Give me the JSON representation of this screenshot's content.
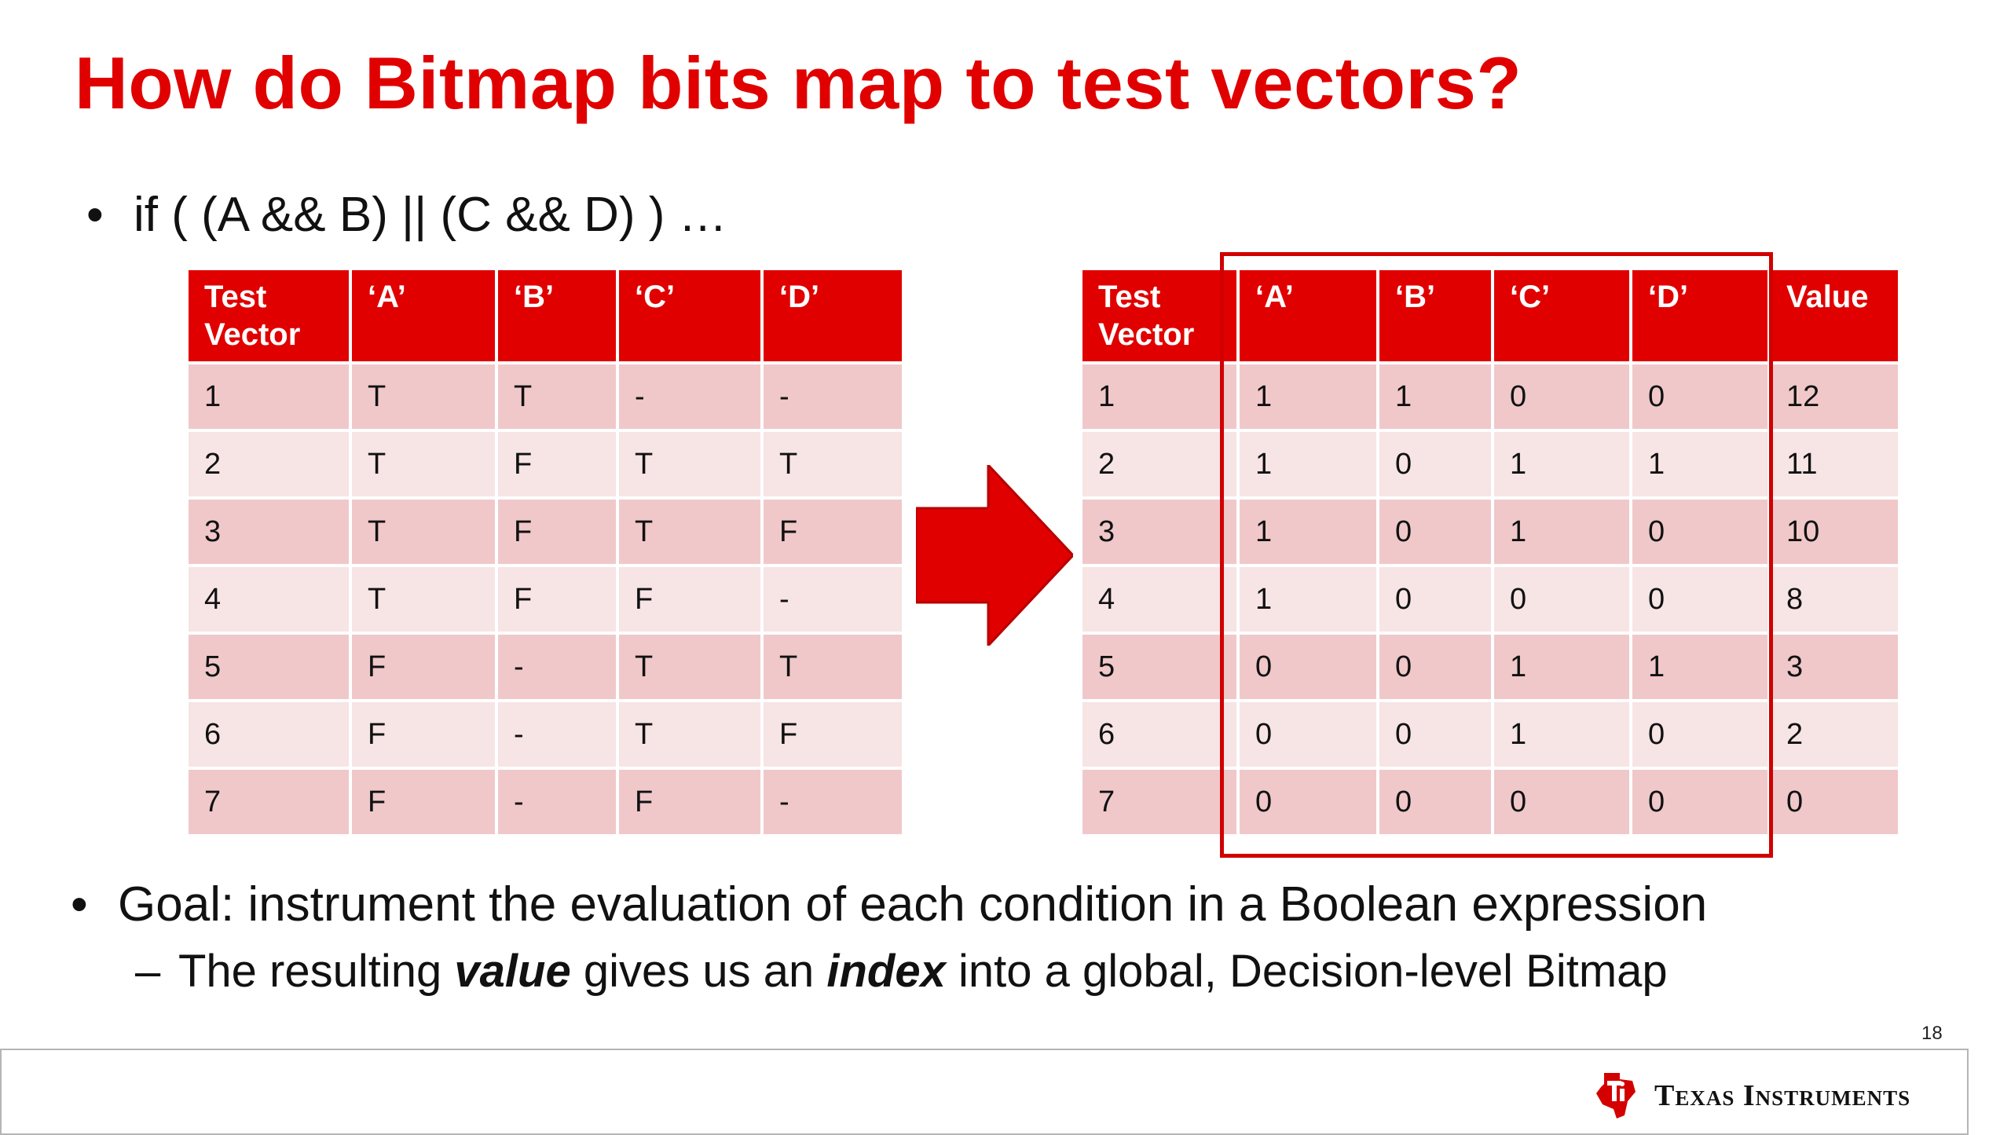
{
  "slide": {
    "title": "How do Bitmap bits map to test vectors?",
    "bullet_if": "if ( (A && B) || (C && D) ) …",
    "bullet_goal": "Goal: instrument the evaluation of each condition in a Boolean expression",
    "sub_bullet": {
      "dash": "–",
      "part1": "The resulting ",
      "emph1": "value",
      "part2": " gives us an ",
      "emph2": "index",
      "part3": " into a global, Decision-level Bitmap"
    },
    "page_number": "18"
  },
  "left_table": {
    "headers": [
      "Test Vector",
      "‘A’",
      "‘B’",
      "‘C’",
      "‘D’"
    ],
    "rows": [
      [
        "1",
        "T",
        "T",
        "-",
        "-"
      ],
      [
        "2",
        "T",
        "F",
        "T",
        "T"
      ],
      [
        "3",
        "T",
        "F",
        "T",
        "F"
      ],
      [
        "4",
        "T",
        "F",
        "F",
        "-"
      ],
      [
        "5",
        "F",
        "-",
        "T",
        "T"
      ],
      [
        "6",
        "F",
        "-",
        "T",
        "F"
      ],
      [
        "7",
        "F",
        "-",
        "F",
        "-"
      ]
    ]
  },
  "right_table": {
    "headers": [
      "Test Vector",
      "‘A’",
      "‘B’",
      "‘C’",
      "‘D’",
      "Value"
    ],
    "rows": [
      [
        "1",
        "1",
        "1",
        "0",
        "0",
        "12"
      ],
      [
        "2",
        "1",
        "0",
        "1",
        "1",
        "11"
      ],
      [
        "3",
        "1",
        "0",
        "1",
        "0",
        "10"
      ],
      [
        "4",
        "1",
        "0",
        "0",
        "0",
        "8"
      ],
      [
        "5",
        "0",
        "0",
        "1",
        "1",
        "3"
      ],
      [
        "6",
        "0",
        "0",
        "1",
        "0",
        "2"
      ],
      [
        "7",
        "0",
        "0",
        "0",
        "0",
        "0"
      ]
    ]
  },
  "footer": {
    "brand_name": "Texas Instruments",
    "logo_icon": "texas-instruments-logo-icon"
  },
  "colors": {
    "accent_red": "#e00000",
    "row_dark": "#f0c8ca",
    "row_light": "#f7e4e5"
  }
}
